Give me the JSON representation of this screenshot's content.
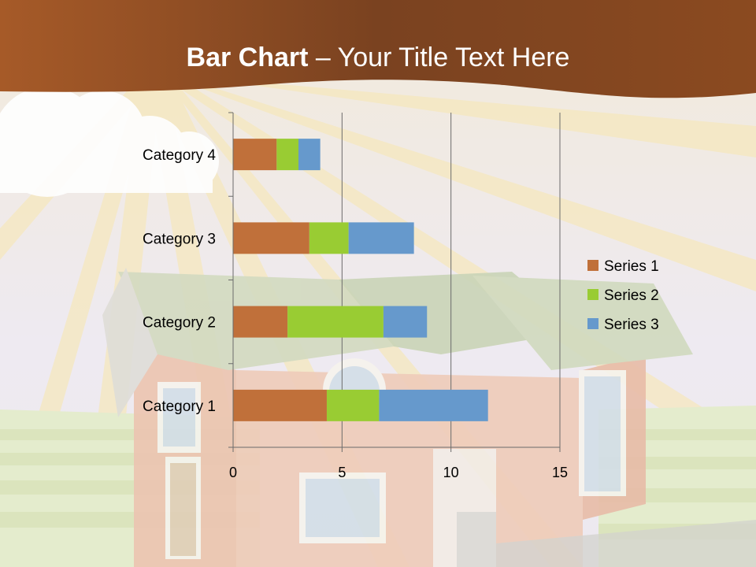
{
  "slide": {
    "title_bold": "Bar Chart",
    "title_rest": " – Your Title Text Here"
  },
  "colors": {
    "banner": "#8b4a20",
    "series1": "#c0703a",
    "series2": "#99cc33",
    "series3": "#6699cc"
  },
  "chart_data": {
    "type": "bar",
    "orientation": "horizontal",
    "stacked": true,
    "categories": [
      "Category 1",
      "Category 2",
      "Category 3",
      "Category 4"
    ],
    "series": [
      {
        "name": "Series 1",
        "values": [
          4.3,
          2.5,
          3.5,
          2.0
        ]
      },
      {
        "name": "Series 2",
        "values": [
          2.4,
          4.4,
          1.8,
          1.0
        ]
      },
      {
        "name": "Series 3",
        "values": [
          5.0,
          2.0,
          3.0,
          1.0
        ]
      }
    ],
    "xlim": [
      0,
      15
    ],
    "xticks": [
      "0",
      "5",
      "10",
      "15"
    ],
    "grid": true,
    "legend": "right"
  }
}
